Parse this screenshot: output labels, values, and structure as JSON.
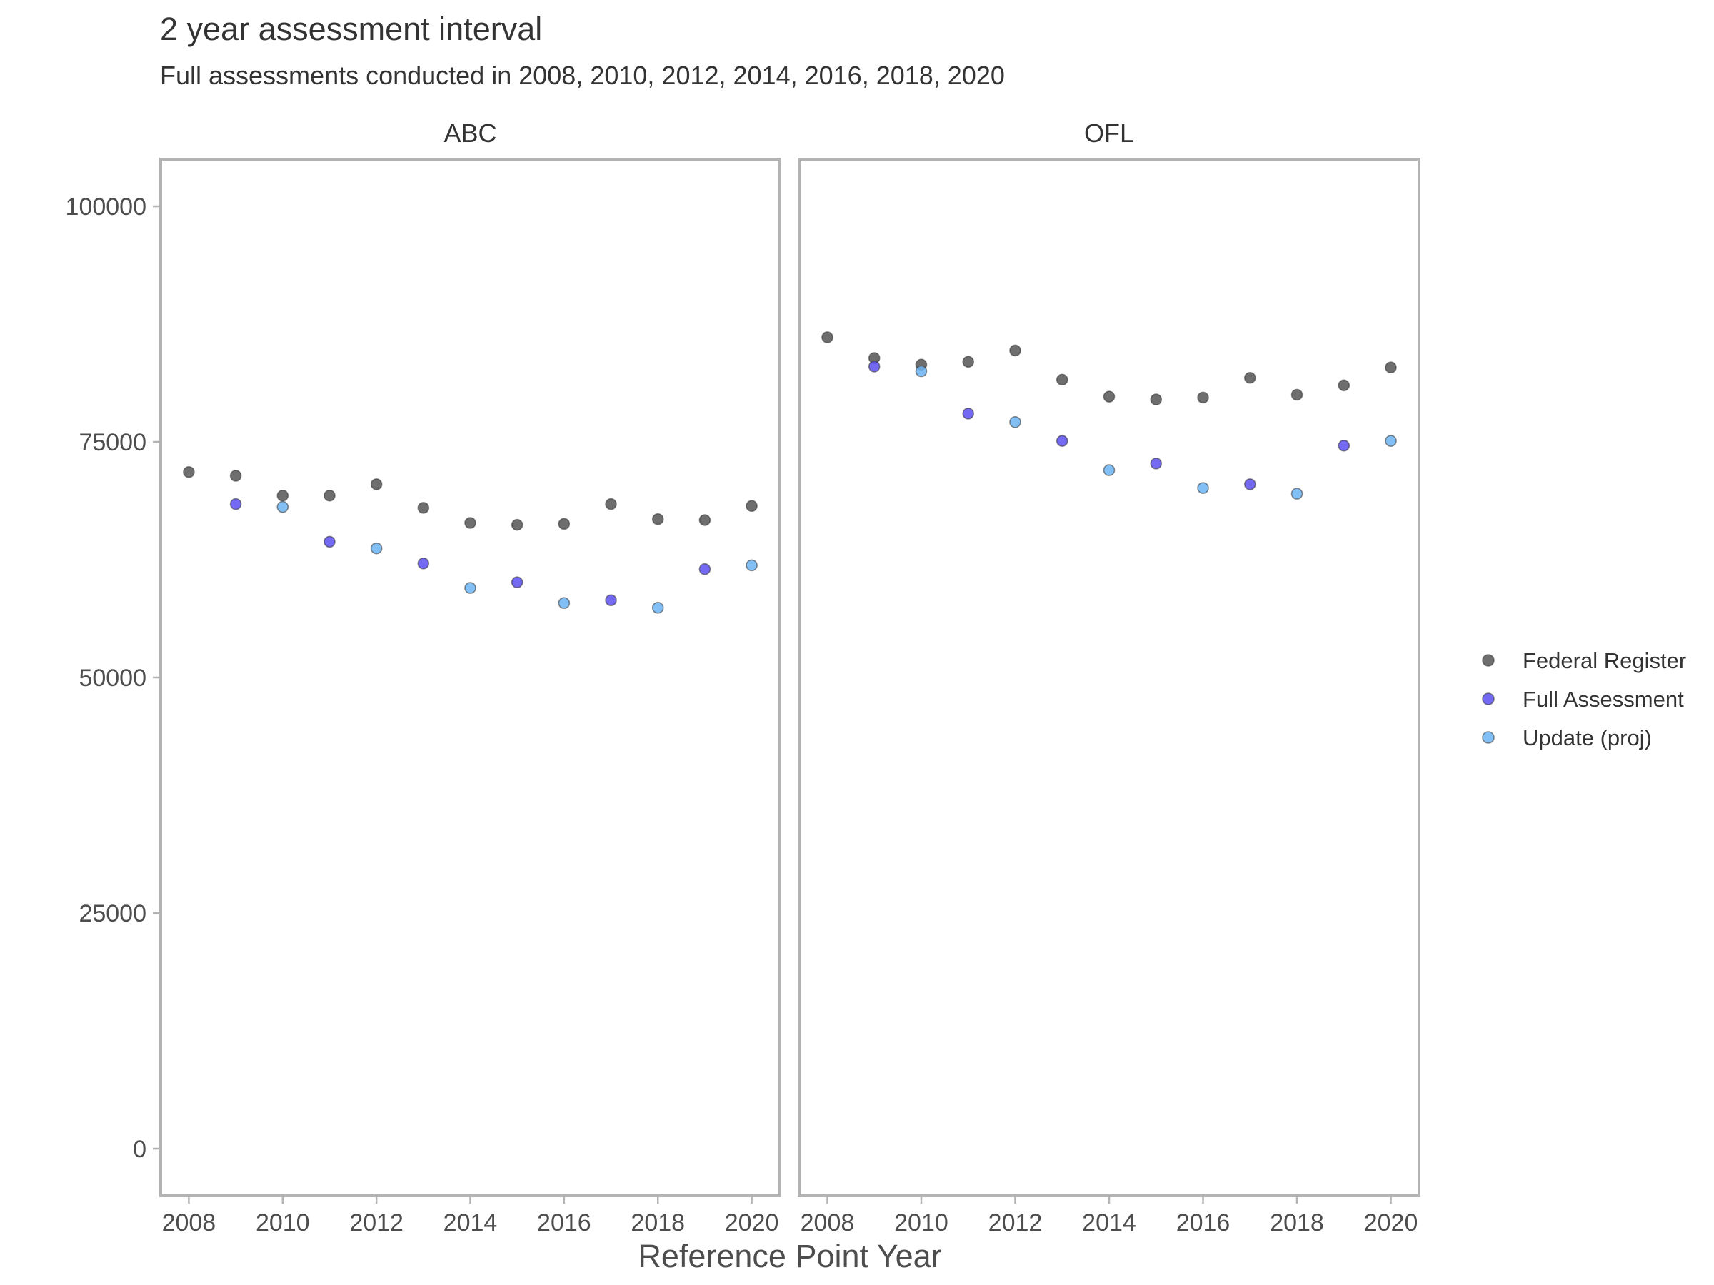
{
  "chart_data": {
    "type": "scatter",
    "title": "2 year assessment interval",
    "subtitle": "Full assessments conducted in  2008, 2010, 2012, 2014, 2016, 2018, 2020",
    "xlabel": "Reference Point Year",
    "ylabel": "",
    "xlim": [
      2007.4,
      2020.6
    ],
    "ylim": [
      -5000,
      105000
    ],
    "x_ticks": [
      2008,
      2010,
      2012,
      2014,
      2016,
      2018,
      2020
    ],
    "y_ticks": [
      0,
      25000,
      50000,
      75000,
      100000
    ],
    "grid": false,
    "legend_position": "right",
    "legend": [
      {
        "name": "Federal Register",
        "color": "#555555"
      },
      {
        "name": "Full Assessment",
        "color": "#5a4ff0"
      },
      {
        "name": "Update (proj)",
        "color": "#6cb4f2"
      }
    ],
    "panels": [
      {
        "label": "ABC",
        "series": [
          {
            "name": "Federal Register",
            "x": [
              2008,
              2009,
              2010,
              2011,
              2012,
              2013,
              2014,
              2015,
              2016,
              2017,
              2018,
              2019,
              2020
            ],
            "y": [
              71800,
              71400,
              69300,
              69300,
              70500,
              68000,
              66400,
              66200,
              66300,
              68400,
              66800,
              66700,
              68200
            ]
          },
          {
            "name": "Full Assessment",
            "x": [
              2009,
              2011,
              2013,
              2015,
              2017,
              2019
            ],
            "y": [
              68400,
              64400,
              62100,
              60100,
              58200,
              61500
            ]
          },
          {
            "name": "Update (proj)",
            "x": [
              2010,
              2012,
              2014,
              2016,
              2018,
              2020
            ],
            "y": [
              68100,
              63700,
              59500,
              57900,
              57400,
              61900
            ]
          }
        ]
      },
      {
        "label": "OFL",
        "series": [
          {
            "name": "Federal Register",
            "x": [
              2008,
              2009,
              2010,
              2011,
              2012,
              2013,
              2014,
              2015,
              2016,
              2017,
              2018,
              2019,
              2020
            ],
            "y": [
              86100,
              83900,
              83200,
              83500,
              84700,
              81600,
              79800,
              79500,
              79700,
              81800,
              80000,
              81000,
              82900
            ]
          },
          {
            "name": "Full Assessment",
            "x": [
              2009,
              2011,
              2013,
              2015,
              2017,
              2019
            ],
            "y": [
              83000,
              78000,
              75100,
              72700,
              70500,
              74600
            ]
          },
          {
            "name": "Update (proj)",
            "x": [
              2010,
              2012,
              2014,
              2016,
              2018,
              2020
            ],
            "y": [
              82500,
              77100,
              72000,
              70100,
              69500,
              75100
            ]
          }
        ]
      }
    ]
  }
}
